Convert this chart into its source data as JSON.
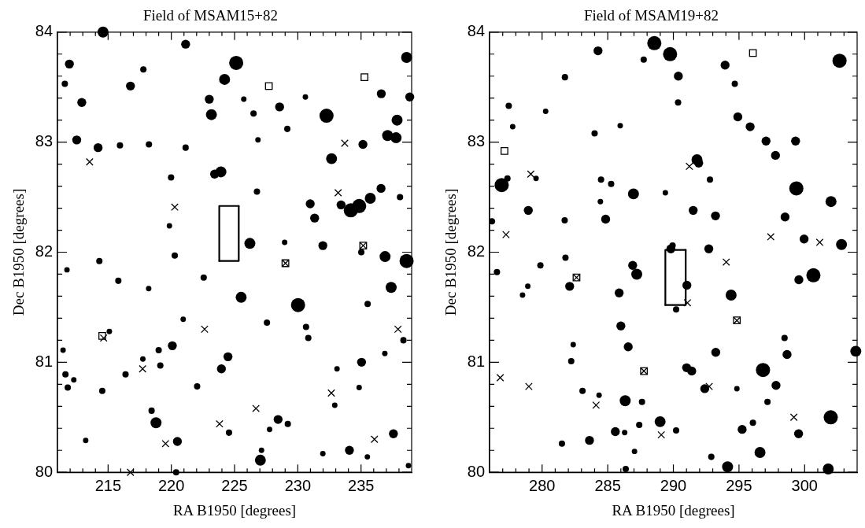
{
  "chart_data": [
    {
      "type": "bubble",
      "title": "Field of MSAM15+82",
      "xlabel": "RA B1950 [degrees]",
      "ylabel": "Dec B1950 [degrees]",
      "xlim": [
        211,
        239
      ],
      "ylim": [
        80,
        84
      ],
      "xticks": [
        {
          "value": 212,
          "label": null
        },
        {
          "value": 213,
          "label": null
        },
        {
          "value": 214,
          "label": null
        },
        215,
        {
          "value": 216,
          "label": null
        },
        {
          "value": 217,
          "label": null
        },
        {
          "value": 218,
          "label": null
        },
        {
          "value": 219,
          "label": null
        },
        220,
        {
          "value": 221,
          "label": null
        },
        {
          "value": 222,
          "label": null
        },
        {
          "value": 223,
          "label": null
        },
        {
          "value": 224,
          "label": null
        },
        225,
        {
          "value": 226,
          "label": null
        },
        {
          "value": 227,
          "label": null
        },
        {
          "value": 228,
          "label": null
        },
        {
          "value": 229,
          "label": null
        },
        230,
        {
          "value": 231,
          "label": null
        },
        {
          "value": 232,
          "label": null
        },
        {
          "value": 233,
          "label": null
        },
        {
          "value": 234,
          "label": null
        },
        235,
        {
          "value": 236,
          "label": null
        },
        {
          "value": 237,
          "label": null
        },
        {
          "value": 238,
          "label": null
        }
      ],
      "yticks": [
        80,
        {
          "value": 80.2,
          "label": null
        },
        {
          "value": 80.4,
          "label": null
        },
        {
          "value": 80.6,
          "label": null
        },
        {
          "value": 80.8,
          "label": null
        },
        81,
        {
          "value": 81.2,
          "label": null
        },
        {
          "value": 81.4,
          "label": null
        },
        {
          "value": 81.6,
          "label": null
        },
        {
          "value": 81.8,
          "label": null
        },
        82,
        {
          "value": 82.2,
          "label": null
        },
        {
          "value": 82.4,
          "label": null
        },
        {
          "value": 82.6,
          "label": null
        },
        {
          "value": 82.8,
          "label": null
        },
        83,
        {
          "value": 83.2,
          "label": null
        },
        {
          "value": 83.4,
          "label": null
        },
        {
          "value": 83.6,
          "label": null
        },
        {
          "value": 83.8,
          "label": null
        },
        84
      ],
      "series": [
        {
          "marker": "circle",
          "color": "#000000",
          "x": [
            214.6,
            211.94,
            211.58,
            212.92,
            221.13,
            217.79,
            216.77,
            225.13,
            224.21,
            223.0,
            223.17,
            225.73,
            226.5,
            228.56,
            230.6,
            229.17,
            226.85,
            232.27,
            236.6,
            238.6,
            238.85,
            237.85,
            237.1,
            237.77,
            235.15,
            232.67,
            212.52,
            214.21,
            215.94,
            218.23,
            221.13,
            219.98,
            223.42,
            223.92,
            226.77,
            219.85,
            230.98,
            231.33,
            233.42,
            234.19,
            234.85,
            235.73,
            236.58,
            238.08,
            228.96,
            226.21,
            231.98,
            235.02,
            236.9,
            238.6,
            211.75,
            214.31,
            220.27,
            215.81,
            218.21,
            222.56,
            225.52,
            230.02,
            237.38,
            235.52,
            227.56,
            230.65,
            230.83,
            220.94,
            215.1,
            238.35,
            211.44,
            219.0,
            220.08,
            217.75,
            219.13,
            224.48,
            223.96,
            235.04,
            236.88,
            211.63,
            211.81,
            212.29,
            216.38,
            214.54,
            222.04,
            233.1,
            234.85,
            232.92,
            218.44,
            218.79,
            224.56,
            228.44,
            227.77,
            229.21,
            213.23,
            220.48,
            227.13,
            227.04,
            231.98,
            234.08,
            235.5,
            237.56,
            238.75,
            220.38
          ],
          "values": [
            84.0,
            83.71,
            83.53,
            83.36,
            83.89,
            83.66,
            83.51,
            83.72,
            83.57,
            83.39,
            83.25,
            83.39,
            83.26,
            83.32,
            83.41,
            83.12,
            83.02,
            83.24,
            83.44,
            83.77,
            83.41,
            83.2,
            83.06,
            83.04,
            82.98,
            82.85,
            83.02,
            82.95,
            82.97,
            82.98,
            82.95,
            82.68,
            82.71,
            82.73,
            82.55,
            82.24,
            82.44,
            82.31,
            82.43,
            82.38,
            82.42,
            82.49,
            82.58,
            82.5,
            82.09,
            82.08,
            82.06,
            82.0,
            81.96,
            81.92,
            81.84,
            81.92,
            81.97,
            81.74,
            81.67,
            81.77,
            81.59,
            81.52,
            81.68,
            81.53,
            81.36,
            81.32,
            81.22,
            81.39,
            81.28,
            81.2,
            81.11,
            81.11,
            81.15,
            81.03,
            80.97,
            81.05,
            80.94,
            81.0,
            81.08,
            80.89,
            80.77,
            80.84,
            80.89,
            80.74,
            80.78,
            80.94,
            80.77,
            80.61,
            80.56,
            80.45,
            80.36,
            80.48,
            80.39,
            80.44,
            80.29,
            80.28,
            80.2,
            80.11,
            80.17,
            80.2,
            80.14,
            80.35,
            80.06,
            80.0
          ],
          "sizes": [
            0.6,
            0.4,
            0.2,
            0.4,
            0.4,
            0.2,
            0.4,
            1,
            0.6,
            0.4,
            0.6,
            0.15,
            0.2,
            0.4,
            0.15,
            0.2,
            0.15,
            1,
            0.4,
            0.6,
            0.4,
            0.6,
            0.6,
            0.6,
            0.4,
            0.6,
            0.4,
            0.4,
            0.2,
            0.2,
            0.2,
            0.2,
            0.4,
            0.6,
            0.2,
            0.15,
            0.4,
            0.4,
            0.4,
            1,
            1,
            0.6,
            0.4,
            0.2,
            0.15,
            0.6,
            0.4,
            0.2,
            0.6,
            1,
            0.15,
            0.2,
            0.2,
            0.2,
            0.15,
            0.2,
            0.6,
            1,
            0.6,
            0.2,
            0.2,
            0.2,
            0.2,
            0.15,
            0.15,
            0.2,
            0.15,
            0.2,
            0.4,
            0.15,
            0.2,
            0.4,
            0.4,
            0.4,
            0.15,
            0.2,
            0.2,
            0.15,
            0.2,
            0.2,
            0.2,
            0.15,
            0.15,
            0.15,
            0.2,
            0.6,
            0.2,
            0.4,
            0.15,
            0.2,
            0.15,
            0.4,
            0.15,
            0.6,
            0.15,
            0.4,
            0.15,
            0.4,
            0.15,
            0.2
          ]
        },
        {
          "type": "scatter",
          "marker": "cross",
          "color": "#000000",
          "x": [
            213.54,
            233.71,
            233.19,
            220.27,
            235.17,
            229.02,
            214.65,
            222.63,
            237.92,
            217.73,
            232.65,
            226.69,
            223.81,
            219.54,
            236.06,
            216.77
          ],
          "values": [
            82.82,
            82.99,
            82.54,
            82.41,
            82.06,
            81.9,
            81.22,
            81.3,
            81.3,
            80.94,
            80.72,
            80.58,
            80.44,
            80.26,
            80.3,
            80.0
          ]
        },
        {
          "type": "scatter",
          "marker": "square",
          "color": "#000000",
          "x": [
            227.71,
            235.27,
            235.17,
            229.02,
            214.54
          ],
          "values": [
            83.51,
            83.59,
            82.06,
            81.9,
            81.24
          ]
        },
        {
          "type": "line",
          "color": "#000000",
          "x": [
            223.79,
            223.79,
            225.33
          ],
          "values": [
            81.92,
            82.42,
            82.42
          ]
        },
        {
          "type": "line",
          "color": "#000000",
          "x": [
            223.79,
            225.33,
            225.33
          ],
          "values": [
            81.92,
            81.92,
            82.42
          ]
        }
      ]
    },
    {
      "type": "bubble",
      "title": "Field of MSAM19+82",
      "xlabel": "RA B1950 [degrees]",
      "ylabel": "Dec B1950 [degrees]",
      "xlim": [
        276,
        304
      ],
      "ylim": [
        80,
        84
      ],
      "xticks": [
        {
          "value": 277,
          "label": null
        },
        {
          "value": 278,
          "label": null
        },
        {
          "value": 279,
          "label": null
        },
        280,
        {
          "value": 281,
          "label": null
        },
        {
          "value": 282,
          "label": null
        },
        {
          "value": 283,
          "label": null
        },
        {
          "value": 284,
          "label": null
        },
        285,
        {
          "value": 286,
          "label": null
        },
        {
          "value": 287,
          "label": null
        },
        {
          "value": 288,
          "label": null
        },
        {
          "value": 289,
          "label": null
        },
        290,
        {
          "value": 291,
          "label": null
        },
        {
          "value": 292,
          "label": null
        },
        {
          "value": 293,
          "label": null
        },
        {
          "value": 294,
          "label": null
        },
        295,
        {
          "value": 296,
          "label": null
        },
        {
          "value": 297,
          "label": null
        },
        {
          "value": 298,
          "label": null
        },
        {
          "value": 299,
          "label": null
        },
        300,
        {
          "value": 301,
          "label": null
        },
        {
          "value": 302,
          "label": null
        },
        {
          "value": 303,
          "label": null
        }
      ],
      "yticks": [
        80,
        {
          "value": 80.2,
          "label": null
        },
        {
          "value": 80.4,
          "label": null
        },
        {
          "value": 80.6,
          "label": null
        },
        {
          "value": 80.8,
          "label": null
        },
        81,
        {
          "value": 81.2,
          "label": null
        },
        {
          "value": 81.4,
          "label": null
        },
        {
          "value": 81.6,
          "label": null
        },
        {
          "value": 81.8,
          "label": null
        },
        82,
        {
          "value": 82.2,
          "label": null
        },
        {
          "value": 82.4,
          "label": null
        },
        {
          "value": 82.6,
          "label": null
        },
        {
          "value": 82.8,
          "label": null
        },
        83,
        {
          "value": 83.2,
          "label": null
        },
        {
          "value": 83.4,
          "label": null
        },
        {
          "value": 83.6,
          "label": null
        },
        {
          "value": 83.8,
          "label": null
        },
        84
      ],
      "series": [
        {
          "marker": "circle",
          "color": "#000000",
          "x": [
            288.55,
            289.75,
            284.26,
            287.74,
            281.74,
            290.38,
            290.36,
            293.94,
            294.68,
            302.66,
            277.46,
            280.27,
            277.76,
            284.0,
            285.95,
            294.91,
            295.85,
            297.06,
            299.31,
            297.78,
            276.92,
            277.36,
            279.54,
            291.8,
            291.93,
            292.79,
            284.49,
            285.26,
            286.96,
            289.39,
            299.37,
            302.01,
            284.44,
            278.95,
            281.72,
            284.84,
            291.51,
            293.21,
            298.51,
            276.18,
            299.96,
            302.81,
            289.81,
            289.94,
            292.7,
            281.78,
            279.87,
            276.56,
            282.1,
            278.91,
            278.51,
            286.9,
            287.21,
            285.87,
            291.03,
            290.21,
            294.4,
            299.56,
            300.67,
            286.0,
            286.56,
            282.37,
            282.22,
            298.47,
            298.66,
            293.23,
            291.01,
            291.4,
            296.83,
            297.82,
            292.39,
            294.84,
            283.08,
            284.34,
            286.33,
            287.61,
            297.17,
            288.99,
            290.21,
            287.4,
            285.58,
            286.29,
            283.61,
            281.51,
            287.04,
            292.89,
            295.24,
            296.06,
            296.6,
            299.54,
            301.99,
            286.37,
            294.13,
            301.8,
            303.9
          ],
          "values": [
            83.9,
            83.8,
            83.83,
            83.75,
            83.59,
            83.6,
            83.36,
            83.7,
            83.53,
            83.74,
            83.33,
            83.28,
            83.14,
            83.08,
            83.15,
            83.23,
            83.14,
            83.01,
            83.01,
            82.88,
            82.61,
            82.67,
            82.67,
            82.84,
            82.81,
            82.66,
            82.66,
            82.62,
            82.53,
            82.54,
            82.58,
            82.46,
            82.46,
            82.38,
            82.29,
            82.3,
            82.38,
            82.33,
            82.32,
            82.28,
            82.12,
            82.07,
            82.03,
            82.06,
            82.03,
            81.95,
            81.88,
            81.82,
            81.69,
            81.69,
            81.61,
            81.88,
            81.8,
            81.63,
            81.7,
            81.48,
            81.61,
            81.75,
            81.79,
            81.33,
            81.14,
            81.16,
            81.01,
            81.22,
            81.07,
            81.09,
            80.95,
            80.92,
            80.93,
            80.79,
            80.76,
            80.76,
            80.74,
            80.7,
            80.65,
            80.64,
            80.64,
            80.46,
            80.38,
            80.43,
            80.37,
            80.36,
            80.29,
            80.26,
            80.19,
            80.14,
            80.39,
            80.45,
            80.18,
            80.35,
            80.5,
            80.03,
            80.05,
            80.03,
            81.1
          ],
          "sizes": [
            1,
            1,
            0.4,
            0.2,
            0.2,
            0.4,
            0.2,
            0.4,
            0.2,
            1,
            0.2,
            0.15,
            0.15,
            0.2,
            0.15,
            0.4,
            0.4,
            0.4,
            0.4,
            0.4,
            1,
            0.2,
            0.15,
            0.6,
            0.4,
            0.2,
            0.2,
            0.2,
            0.6,
            0.15,
            1,
            0.6,
            0.15,
            0.4,
            0.2,
            0.4,
            0.4,
            0.4,
            0.4,
            0.2,
            0.4,
            0.6,
            0.4,
            0.2,
            0.4,
            0.2,
            0.2,
            0.2,
            0.4,
            0.15,
            0.15,
            0.4,
            0.6,
            0.4,
            0.4,
            0.2,
            0.6,
            0.4,
            1,
            0.4,
            0.4,
            0.15,
            0.2,
            0.2,
            0.4,
            0.4,
            0.4,
            0.4,
            1,
            0.4,
            0.4,
            0.15,
            0.2,
            0.15,
            0.6,
            0.2,
            0.2,
            0.6,
            0.2,
            0.2,
            0.4,
            0.15,
            0.4,
            0.2,
            0.15,
            0.2,
            0.4,
            0.2,
            0.6,
            0.4,
            1,
            0.2,
            0.6,
            0.6,
            0.6
          ]
        },
        {
          "type": "scatter",
          "marker": "cross",
          "color": "#000000",
          "x": [
            279.14,
            291.22,
            277.25,
            297.42,
            301.15,
            294.03,
            282.62,
            291.07,
            294.84,
            287.76,
            276.81,
            278.99,
            292.73,
            284.11,
            289.08,
            299.18
          ],
          "values": [
            82.71,
            82.78,
            82.16,
            82.14,
            82.09,
            81.91,
            81.77,
            81.54,
            81.38,
            80.92,
            80.86,
            80.78,
            80.78,
            80.61,
            80.34,
            80.5
          ]
        },
        {
          "type": "scatter",
          "marker": "square",
          "color": "#000000",
          "x": [
            296.06,
            277.13,
            282.62,
            294.84,
            287.76
          ],
          "values": [
            83.81,
            82.92,
            81.77,
            81.38,
            80.92
          ]
        },
        {
          "type": "line",
          "color": "#000000",
          "x": [
            289.39,
            289.39,
            290.94
          ],
          "values": [
            81.52,
            82.02,
            82.02
          ]
        },
        {
          "type": "line",
          "color": "#000000",
          "x": [
            289.39,
            290.94,
            290.94
          ],
          "values": [
            81.52,
            81.52,
            82.02
          ]
        }
      ]
    }
  ]
}
